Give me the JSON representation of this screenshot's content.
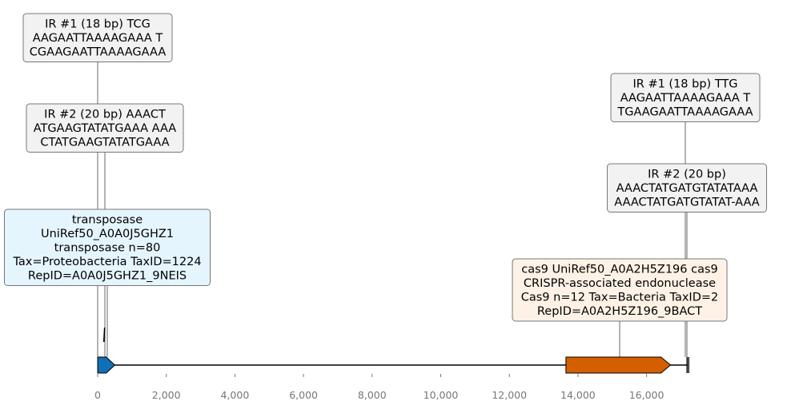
{
  "colors": {
    "transposase": "#1170b5",
    "cas9": "#d35f00",
    "ir_box_fill": "#f2f2f2",
    "ir_box_stroke": "#777777",
    "transposase_box_fill": "#e5f5fd",
    "cas9_box_fill": "#fef2e6",
    "axis_tick_text": "#777777"
  },
  "axis": {
    "min": 0,
    "max": 17200,
    "ticks": [
      0,
      2000,
      4000,
      6000,
      8000,
      10000,
      12000,
      14000,
      16000
    ],
    "tick_labels": [
      "0",
      "2,000",
      "4,000",
      "6,000",
      "8,000",
      "10,000",
      "12,000",
      "14,000",
      "16,000"
    ]
  },
  "track": {
    "start": 0,
    "end": 17200
  },
  "features": [
    {
      "id": "transposase",
      "type": "gene",
      "start": 0,
      "end": 500,
      "strand": "+",
      "color": "#1170b5"
    },
    {
      "id": "cas9",
      "type": "gene",
      "start": 13650,
      "end": 16700,
      "strand": "+",
      "color": "#d35f00"
    }
  ],
  "markers": [
    {
      "id": "ir-left-small",
      "position": 180
    },
    {
      "id": "ir-right-end",
      "position": 17180
    }
  ],
  "labels": [
    {
      "id": "ir1-left",
      "style": "ir",
      "anchor": 0,
      "lines": [
        "IR #1 (18 bp) TCG",
        "AAGAATTAAAAGAAA T",
        "CGAAGAATTAAAAGAAA"
      ]
    },
    {
      "id": "ir2-left",
      "style": "ir",
      "anchor": 200,
      "lines": [
        "IR #2 (20 bp) AAACT",
        "ATGAAGTATATGAAA AAA",
        "CTATGAAGTATATGAAA"
      ]
    },
    {
      "id": "transposase-label",
      "style": "transposase",
      "anchor": 250,
      "lines": [
        "transposase",
        "UniRef50_A0A0J5GHZ1",
        "transposase n=80",
        "Tax=Proteobacteria TaxID=1224",
        "RepID=A0A0J5GHZ1_9NEIS"
      ]
    },
    {
      "id": "ir1-right",
      "style": "ir",
      "anchor": 17140,
      "lines": [
        "IR #1 (18 bp) TTG",
        "AAGAATTAAAAGAAA T",
        "TGAAGAATTAAAAGAAA"
      ]
    },
    {
      "id": "ir2-right",
      "style": "ir",
      "anchor": 17160,
      "lines": [
        "IR #2 (20 bp)",
        "AAACTATGATGTATATAAA",
        "AAACTATGATGTATAT-AAA"
      ]
    },
    {
      "id": "cas9-label",
      "style": "cas9",
      "anchor": 15200,
      "lines": [
        "cas9 UniRef50_A0A2H5Z196 cas9",
        "CRISPR-associated endonuclease",
        "Cas9 n=12 Tax=Bacteria TaxID=2",
        "RepID=A0A2H5Z196_9BACT"
      ]
    }
  ]
}
